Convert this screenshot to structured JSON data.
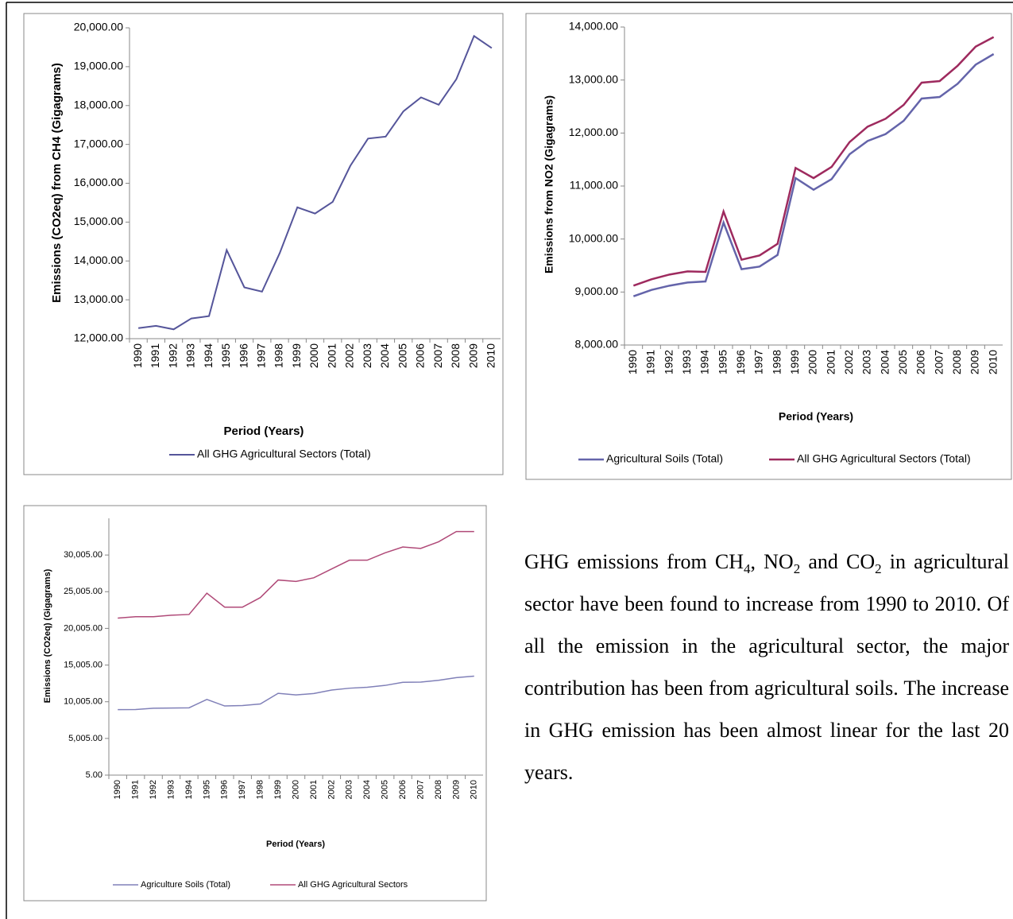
{
  "chart_data": [
    {
      "type": "line",
      "y_label": "Emissions (CO2eq) from CH4 (Gigagrams)",
      "x_label": "Period (Years)",
      "categories": [
        "1990",
        "1991",
        "1992",
        "1993",
        "1994",
        "1995",
        "1996",
        "1997",
        "1998",
        "1999",
        "2000",
        "2001",
        "2002",
        "2003",
        "2004",
        "2005",
        "2006",
        "2007",
        "2008",
        "2009",
        "2010"
      ],
      "series": [
        {
          "name": "All GHG Agricultural Sectors (Total)",
          "color": "#55559a",
          "values": [
            12270,
            12330,
            12240,
            12520,
            12580,
            14280,
            13320,
            13210,
            14200,
            15380,
            15220,
            15520,
            16450,
            17150,
            17200,
            17850,
            18210,
            18020,
            18680,
            19790,
            19480
          ]
        }
      ],
      "ylim": [
        12000,
        20000
      ],
      "yticks": [
        {
          "value": 12000,
          "label": "12,000.00"
        },
        {
          "value": 13000,
          "label": "13,000.00"
        },
        {
          "value": 14000,
          "label": "14,000.00"
        },
        {
          "value": 15000,
          "label": "15,000.00"
        },
        {
          "value": 16000,
          "label": "16,000.00"
        },
        {
          "value": 17000,
          "label": "17,000.00"
        },
        {
          "value": 18000,
          "label": "18,000.00"
        },
        {
          "value": 19000,
          "label": "19,000.00"
        },
        {
          "value": 20000,
          "label": "20,000.00"
        }
      ],
      "grid": false
    },
    {
      "type": "line",
      "y_label": "Emissions from NO2 (Gigagrams)",
      "x_label": "Period (Years)",
      "categories": [
        "1990",
        "1991",
        "1992",
        "1993",
        "1994",
        "1995",
        "1996",
        "1997",
        "1998",
        "1999",
        "2000",
        "2001",
        "2002",
        "2003",
        "2004",
        "2005",
        "2006",
        "2007",
        "2008",
        "2009",
        "2010"
      ],
      "series": [
        {
          "name": "Agricultural Soils (Total)",
          "color": "#6464aa",
          "values": [
            8920,
            9040,
            9120,
            9180,
            9200,
            10310,
            9430,
            9480,
            9700,
            11150,
            10930,
            11130,
            11600,
            11850,
            11980,
            12230,
            12650,
            12680,
            12930,
            13290,
            13490
          ]
        },
        {
          "name": "All GHG Agricultural Sectors (Total)",
          "color": "#9e2a5e",
          "values": [
            9120,
            9240,
            9330,
            9390,
            9380,
            10520,
            9610,
            9690,
            9910,
            11340,
            11150,
            11360,
            11830,
            12120,
            12270,
            12530,
            12950,
            12980,
            13270,
            13630,
            13810
          ]
        }
      ],
      "ylim": [
        8000,
        14000
      ],
      "yticks": [
        {
          "value": 8000,
          "label": "8,000.00"
        },
        {
          "value": 9000,
          "label": "9,000.00"
        },
        {
          "value": 10000,
          "label": "10,000.00"
        },
        {
          "value": 11000,
          "label": "11,000.00"
        },
        {
          "value": 12000,
          "label": "12,000.00"
        },
        {
          "value": 13000,
          "label": "13,000.00"
        },
        {
          "value": 14000,
          "label": "14,000.00"
        }
      ],
      "grid": false
    },
    {
      "type": "line",
      "y_label": "Emissions (CO2eq) (Gigagrams)",
      "x_label": "Period (Years)",
      "categories": [
        "1990",
        "1991",
        "1992",
        "1993",
        "1994",
        "1995",
        "1996",
        "1997",
        "1998",
        "1999",
        "2000",
        "2001",
        "2002",
        "2003",
        "2004",
        "2005",
        "2006",
        "2007",
        "2008",
        "2009",
        "2010"
      ],
      "series": [
        {
          "name": "Agriculture Soils (Total)",
          "color": "#8080b8",
          "values": [
            8930,
            8950,
            9120,
            9150,
            9180,
            10320,
            9430,
            9480,
            9700,
            11150,
            10930,
            11130,
            11600,
            11850,
            11980,
            12230,
            12650,
            12680,
            12930,
            13290,
            13490
          ]
        },
        {
          "name": "All GHG Agricultural Sectors",
          "color": "#b04a78",
          "values": [
            21400,
            21600,
            21600,
            21800,
            21900,
            24800,
            22900,
            22900,
            24200,
            26600,
            26400,
            26900,
            28100,
            29300,
            29300,
            30300,
            31100,
            30900,
            31800,
            33200,
            33200
          ]
        }
      ],
      "ylim": [
        5,
        35005
      ],
      "yticks": [
        {
          "value": 5,
          "label": "5.00"
        },
        {
          "value": 5005,
          "label": "5,005.00"
        },
        {
          "value": 10005,
          "label": "10,005.00"
        },
        {
          "value": 15005,
          "label": "15,005.00"
        },
        {
          "value": 20005,
          "label": "20,005.00"
        },
        {
          "value": 25005,
          "label": "25,005.00"
        },
        {
          "value": 30005,
          "label": "30,005.00"
        }
      ],
      "grid": false
    }
  ],
  "paragraph": [
    "GHG emissions from CH",
    "4",
    ", NO",
    "2",
    " and CO",
    "2",
    " in agricultural sector have been found to increase from 1990 to 2010. Of all the emission in the agricultural sector, the major contribution has been from agricultural soils. The increase in GHG emission has been almost linear for the last 20 years."
  ]
}
